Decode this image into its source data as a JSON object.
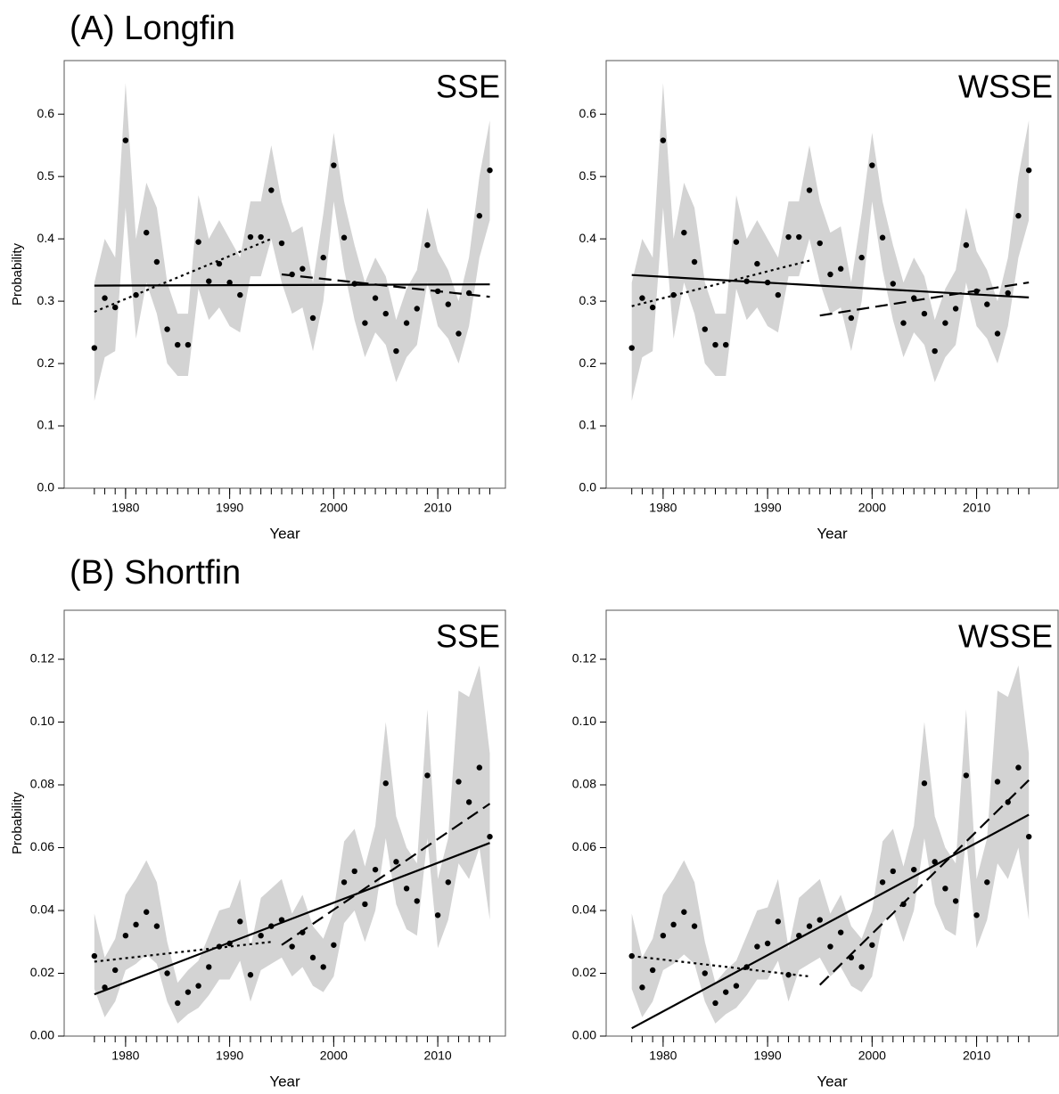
{
  "panel_titles": [
    "(A) Longfin",
    "(B) Shortfin"
  ],
  "chart_data": [
    {
      "type": "line",
      "title": "SSE",
      "xlabel": "Year",
      "ylabel": "Probability",
      "x": [
        1977,
        1978,
        1979,
        1980,
        1981,
        1982,
        1983,
        1984,
        1985,
        1986,
        1987,
        1988,
        1989,
        1990,
        1991,
        1992,
        1993,
        1994,
        1995,
        1996,
        1997,
        1998,
        1999,
        2000,
        2001,
        2002,
        2003,
        2004,
        2005,
        2006,
        2007,
        2008,
        2009,
        2010,
        2011,
        2012,
        2013,
        2014,
        2015
      ],
      "values": [
        0.225,
        0.305,
        0.29,
        0.558,
        0.31,
        0.41,
        0.363,
        0.255,
        0.23,
        0.23,
        0.395,
        0.332,
        0.36,
        0.33,
        0.31,
        0.403,
        0.403,
        0.478,
        0.393,
        0.343,
        0.352,
        0.273,
        0.37,
        0.518,
        0.402,
        0.328,
        0.265,
        0.305,
        0.28,
        0.22,
        0.265,
        0.288,
        0.39,
        0.316,
        0.295,
        0.248,
        0.313,
        0.437,
        0.51
      ],
      "band_upper": [
        0.33,
        0.4,
        0.37,
        0.65,
        0.4,
        0.49,
        0.45,
        0.33,
        0.28,
        0.28,
        0.47,
        0.4,
        0.43,
        0.4,
        0.37,
        0.46,
        0.46,
        0.55,
        0.46,
        0.41,
        0.42,
        0.33,
        0.44,
        0.57,
        0.46,
        0.39,
        0.33,
        0.37,
        0.34,
        0.27,
        0.32,
        0.35,
        0.45,
        0.38,
        0.35,
        0.3,
        0.37,
        0.5,
        0.59
      ],
      "band_lower": [
        0.14,
        0.21,
        0.22,
        0.45,
        0.24,
        0.33,
        0.28,
        0.2,
        0.18,
        0.18,
        0.32,
        0.27,
        0.29,
        0.26,
        0.25,
        0.34,
        0.34,
        0.4,
        0.33,
        0.28,
        0.29,
        0.22,
        0.3,
        0.46,
        0.35,
        0.27,
        0.21,
        0.25,
        0.23,
        0.17,
        0.21,
        0.23,
        0.33,
        0.26,
        0.24,
        0.2,
        0.26,
        0.37,
        0.43
      ],
      "trends": [
        {
          "style": "solid",
          "x": [
            1977,
            2015
          ],
          "values": [
            0.325,
            0.327
          ]
        },
        {
          "style": "dotted",
          "x": [
            1977,
            1994
          ],
          "values": [
            0.283,
            0.4
          ]
        },
        {
          "style": "dashed",
          "x": [
            1995,
            2015
          ],
          "values": [
            0.343,
            0.307
          ]
        }
      ],
      "xlim": [
        1974.1,
        2016.5
      ],
      "xticks": [
        1980,
        1990,
        2000,
        2010
      ],
      "ylim": [
        0,
        0.686
      ],
      "yticks": [
        {
          "value": 0,
          "label": "0.0"
        },
        0.1,
        0.2,
        0.3,
        0.4,
        0.5,
        0.6
      ],
      "color": "#000000",
      "band_color": "#d3d3d3"
    },
    {
      "type": "line",
      "title": "WSSE",
      "xlabel": "Year",
      "x": [
        1977,
        1978,
        1979,
        1980,
        1981,
        1982,
        1983,
        1984,
        1985,
        1986,
        1987,
        1988,
        1989,
        1990,
        1991,
        1992,
        1993,
        1994,
        1995,
        1996,
        1997,
        1998,
        1999,
        2000,
        2001,
        2002,
        2003,
        2004,
        2005,
        2006,
        2007,
        2008,
        2009,
        2010,
        2011,
        2012,
        2013,
        2014,
        2015
      ],
      "values": [
        0.225,
        0.305,
        0.29,
        0.558,
        0.31,
        0.41,
        0.363,
        0.255,
        0.23,
        0.23,
        0.395,
        0.332,
        0.36,
        0.33,
        0.31,
        0.403,
        0.403,
        0.478,
        0.393,
        0.343,
        0.352,
        0.273,
        0.37,
        0.518,
        0.402,
        0.328,
        0.265,
        0.305,
        0.28,
        0.22,
        0.265,
        0.288,
        0.39,
        0.316,
        0.295,
        0.248,
        0.313,
        0.437,
        0.51
      ],
      "band_upper": [
        0.33,
        0.4,
        0.37,
        0.65,
        0.4,
        0.49,
        0.45,
        0.33,
        0.28,
        0.28,
        0.47,
        0.4,
        0.43,
        0.4,
        0.37,
        0.46,
        0.46,
        0.55,
        0.46,
        0.41,
        0.42,
        0.33,
        0.44,
        0.57,
        0.46,
        0.39,
        0.33,
        0.37,
        0.34,
        0.27,
        0.32,
        0.35,
        0.45,
        0.38,
        0.35,
        0.3,
        0.37,
        0.5,
        0.59
      ],
      "band_lower": [
        0.14,
        0.21,
        0.22,
        0.45,
        0.24,
        0.33,
        0.28,
        0.2,
        0.18,
        0.18,
        0.32,
        0.27,
        0.29,
        0.26,
        0.25,
        0.34,
        0.34,
        0.4,
        0.33,
        0.28,
        0.29,
        0.22,
        0.3,
        0.46,
        0.35,
        0.27,
        0.21,
        0.25,
        0.23,
        0.17,
        0.21,
        0.23,
        0.33,
        0.26,
        0.24,
        0.2,
        0.26,
        0.37,
        0.43
      ],
      "trends": [
        {
          "style": "solid",
          "x": [
            1977,
            2015
          ],
          "values": [
            0.342,
            0.306
          ]
        },
        {
          "style": "dotted",
          "x": [
            1977,
            1994
          ],
          "values": [
            0.292,
            0.365
          ]
        },
        {
          "style": "dashed",
          "x": [
            1995,
            2015
          ],
          "values": [
            0.277,
            0.33
          ]
        }
      ],
      "xlim": [
        1974.55,
        2017.8
      ],
      "xticks": [
        1980,
        1990,
        2000,
        2010
      ],
      "ylim": [
        0,
        0.686
      ],
      "yticks": [
        {
          "value": 0,
          "label": "0.0"
        },
        0.1,
        0.2,
        0.3,
        0.4,
        0.5,
        0.6
      ],
      "color": "#000000",
      "band_color": "#d3d3d3"
    },
    {
      "type": "line",
      "title": "SSE",
      "xlabel": "Year",
      "ylabel": "Probability",
      "x": [
        1977,
        1978,
        1979,
        1980,
        1981,
        1982,
        1983,
        1984,
        1985,
        1986,
        1987,
        1988,
        1989,
        1990,
        1991,
        1992,
        1993,
        1994,
        1995,
        1996,
        1997,
        1998,
        1999,
        2000,
        2001,
        2002,
        2003,
        2004,
        2005,
        2006,
        2007,
        2008,
        2009,
        2010,
        2011,
        2012,
        2013,
        2014,
        2015
      ],
      "values": [
        0.0255,
        0.0155,
        0.021,
        0.032,
        0.0355,
        0.0395,
        0.035,
        0.02,
        0.0105,
        0.014,
        0.016,
        0.022,
        0.0285,
        0.0295,
        0.0365,
        0.0195,
        0.032,
        0.035,
        0.037,
        0.0285,
        0.033,
        0.025,
        0.022,
        0.029,
        0.049,
        0.0525,
        0.042,
        0.053,
        0.0805,
        0.0555,
        0.047,
        0.043,
        0.083,
        0.0385,
        0.049,
        0.081,
        0.0745,
        0.0855,
        0.0635
      ],
      "band_upper": [
        0.039,
        0.025,
        0.031,
        0.045,
        0.05,
        0.056,
        0.049,
        0.03,
        0.017,
        0.021,
        0.024,
        0.032,
        0.04,
        0.041,
        0.05,
        0.028,
        0.044,
        0.047,
        0.05,
        0.039,
        0.045,
        0.035,
        0.031,
        0.04,
        0.062,
        0.066,
        0.054,
        0.067,
        0.1,
        0.07,
        0.06,
        0.055,
        0.104,
        0.05,
        0.063,
        0.11,
        0.108,
        0.118,
        0.09
      ],
      "band_lower": [
        0.015,
        0.006,
        0.011,
        0.021,
        0.023,
        0.026,
        0.023,
        0.011,
        0.004,
        0.007,
        0.009,
        0.013,
        0.018,
        0.018,
        0.024,
        0.011,
        0.021,
        0.023,
        0.025,
        0.019,
        0.022,
        0.016,
        0.014,
        0.019,
        0.036,
        0.04,
        0.03,
        0.04,
        0.063,
        0.042,
        0.034,
        0.032,
        0.063,
        0.028,
        0.037,
        0.055,
        0.05,
        0.06,
        0.037
      ],
      "trends": [
        {
          "style": "solid",
          "x": [
            1977,
            2015
          ],
          "values": [
            0.0133,
            0.0615
          ]
        },
        {
          "style": "dotted",
          "x": [
            1977,
            1994
          ],
          "values": [
            0.0237,
            0.03
          ]
        },
        {
          "style": "dashed",
          "x": [
            1995,
            2015
          ],
          "values": [
            0.029,
            0.074
          ]
        }
      ],
      "xlim": [
        1974.1,
        2016.5
      ],
      "xticks": [
        1980,
        1990,
        2000,
        2010
      ],
      "ylim": [
        0,
        0.1356
      ],
      "yticks": [
        {
          "value": 0,
          "label": "0.00"
        },
        0.02,
        0.04,
        0.06,
        0.08,
        {
          "value": 0.1,
          "label": "0.10"
        },
        0.12
      ],
      "color": "#000000",
      "band_color": "#d3d3d3"
    },
    {
      "type": "line",
      "title": "WSSE",
      "xlabel": "Year",
      "x": [
        1977,
        1978,
        1979,
        1980,
        1981,
        1982,
        1983,
        1984,
        1985,
        1986,
        1987,
        1988,
        1989,
        1990,
        1991,
        1992,
        1993,
        1994,
        1995,
        1996,
        1997,
        1998,
        1999,
        2000,
        2001,
        2002,
        2003,
        2004,
        2005,
        2006,
        2007,
        2008,
        2009,
        2010,
        2011,
        2012,
        2013,
        2014,
        2015
      ],
      "values": [
        0.0255,
        0.0155,
        0.021,
        0.032,
        0.0355,
        0.0395,
        0.035,
        0.02,
        0.0105,
        0.014,
        0.016,
        0.022,
        0.0285,
        0.0295,
        0.0365,
        0.0195,
        0.032,
        0.035,
        0.037,
        0.0285,
        0.033,
        0.025,
        0.022,
        0.029,
        0.049,
        0.0525,
        0.042,
        0.053,
        0.0805,
        0.0555,
        0.047,
        0.043,
        0.083,
        0.0385,
        0.049,
        0.081,
        0.0745,
        0.0855,
        0.0635
      ],
      "band_upper": [
        0.039,
        0.025,
        0.031,
        0.045,
        0.05,
        0.056,
        0.049,
        0.03,
        0.017,
        0.021,
        0.024,
        0.032,
        0.04,
        0.041,
        0.05,
        0.028,
        0.044,
        0.047,
        0.05,
        0.039,
        0.045,
        0.035,
        0.031,
        0.04,
        0.062,
        0.066,
        0.054,
        0.067,
        0.1,
        0.07,
        0.06,
        0.055,
        0.104,
        0.05,
        0.063,
        0.11,
        0.108,
        0.118,
        0.09
      ],
      "band_lower": [
        0.015,
        0.006,
        0.011,
        0.021,
        0.023,
        0.026,
        0.023,
        0.011,
        0.004,
        0.007,
        0.009,
        0.013,
        0.018,
        0.018,
        0.024,
        0.011,
        0.021,
        0.023,
        0.025,
        0.019,
        0.022,
        0.016,
        0.014,
        0.019,
        0.036,
        0.04,
        0.03,
        0.04,
        0.063,
        0.042,
        0.034,
        0.032,
        0.063,
        0.028,
        0.037,
        0.055,
        0.05,
        0.06,
        0.037
      ],
      "trends": [
        {
          "style": "solid",
          "x": [
            1977,
            2015
          ],
          "values": [
            0.0025,
            0.0705
          ]
        },
        {
          "style": "dotted",
          "x": [
            1977,
            1994
          ],
          "values": [
            0.0255,
            0.019
          ]
        },
        {
          "style": "dashed",
          "x": [
            1995,
            2015
          ],
          "values": [
            0.0163,
            0.0815
          ]
        }
      ],
      "xlim": [
        1974.55,
        2017.8
      ],
      "xticks": [
        1980,
        1990,
        2000,
        2010
      ],
      "ylim": [
        0,
        0.1356
      ],
      "yticks": [
        {
          "value": 0,
          "label": "0.00"
        },
        0.02,
        0.04,
        0.06,
        0.08,
        {
          "value": 0.1,
          "label": "0.10"
        },
        0.12
      ],
      "color": "#000000",
      "band_color": "#d3d3d3"
    }
  ]
}
